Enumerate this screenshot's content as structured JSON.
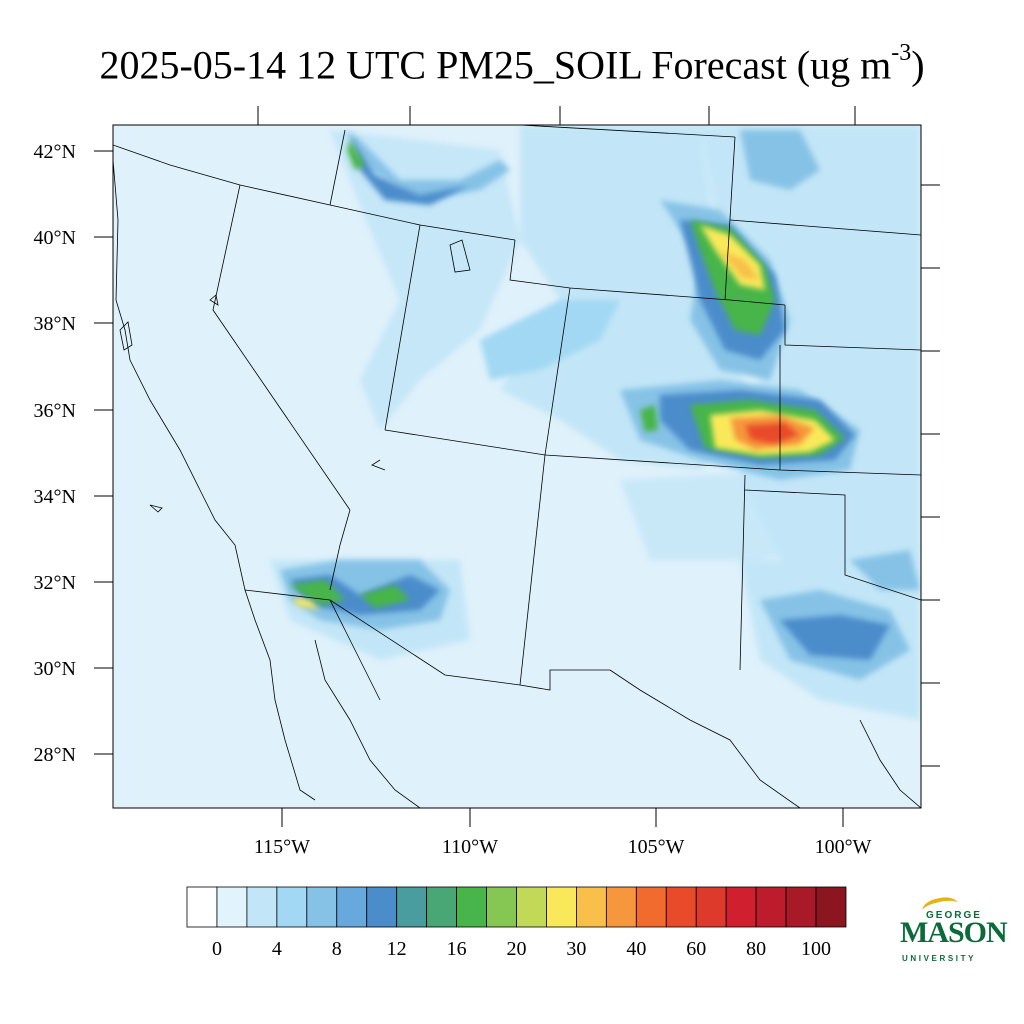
{
  "title": {
    "main": "2025-05-14 12 UTC PM25_SOIL Forecast (ug m",
    "exponent": "-3",
    "close": ")"
  },
  "map": {
    "lat_labels": [
      "42°N",
      "40°N",
      "38°N",
      "36°N",
      "34°N",
      "32°N",
      "30°N",
      "28°N"
    ],
    "lon_labels": [
      "115°W",
      "110°W",
      "105°W",
      "100°W"
    ],
    "ocean_color": "#dff1fb"
  },
  "colorbar": {
    "labels": [
      "0",
      "4",
      "8",
      "12",
      "16",
      "20",
      "30",
      "40",
      "60",
      "80",
      "100"
    ],
    "colors": [
      "#ffffff",
      "#e1f3fb",
      "#c2e6f7",
      "#a2d8f3",
      "#86c2e6",
      "#67a9dc",
      "#4b8ccb",
      "#499d9e",
      "#49a776",
      "#47b54a",
      "#86c653",
      "#c2d957",
      "#f9e95a",
      "#f8c04a",
      "#f6963d",
      "#f26b2e",
      "#e94b2a",
      "#de3a2b",
      "#d01f2e",
      "#bd1c2c",
      "#a81a27",
      "#8b1620"
    ]
  },
  "logo": {
    "line1": "GEORGE",
    "line2": "MASON",
    "line3": "UNIVERSITY",
    "color": "#0b6b3a",
    "accent": "#e3b414"
  }
}
